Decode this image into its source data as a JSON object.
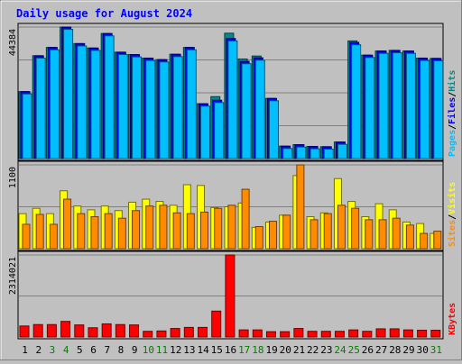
{
  "chart_data": {
    "type": "bar",
    "title": "Daily usage for August 2024",
    "categories": [
      "1",
      "2",
      "3",
      "4",
      "5",
      "6",
      "7",
      "8",
      "9",
      "10",
      "11",
      "12",
      "13",
      "14",
      "15",
      "16",
      "17",
      "18",
      "19",
      "20",
      "21",
      "22",
      "23",
      "24",
      "25",
      "26",
      "27",
      "28",
      "29",
      "30",
      "31"
    ],
    "weekend_days": [
      "3",
      "4",
      "10",
      "11",
      "17",
      "18",
      "24",
      "25",
      "31"
    ],
    "panels": [
      {
        "id": "hits-files-pages",
        "ymax_label": "44384",
        "ymax": 44384,
        "right_labels": [
          {
            "text": "Pages",
            "color": "#00bfff"
          },
          {
            "text": "/",
            "color": "#000000"
          },
          {
            "text": "Files",
            "color": "#0000ff"
          },
          {
            "text": "/",
            "color": "#000000"
          },
          {
            "text": "Hits",
            "color": "#008b8b"
          }
        ],
        "series": [
          {
            "name": "Hits",
            "color": "#008b8b",
            "values": [
              22600,
              34700,
              37500,
              44384,
              38800,
              37300,
              42200,
              35900,
              35100,
              33900,
              33400,
              35200,
              37500,
              18500,
              20900,
              42300,
              33600,
              34600,
              20300,
              4200,
              4700,
              4100,
              4000,
              5600,
              39700,
              34900,
              36300,
              36500,
              36300,
              33900,
              33800
            ]
          },
          {
            "name": "Files",
            "color": "#0000ff",
            "values": [
              22600,
              34700,
              37500,
              44384,
              38800,
              37300,
              42200,
              35900,
              35100,
              33900,
              33400,
              35200,
              37500,
              18500,
              19700,
              40500,
              32800,
              34000,
              20300,
              4200,
              4700,
              4100,
              4000,
              5600,
              39200,
              34900,
              36300,
              36500,
              36300,
              33900,
              33800
            ]
          },
          {
            "name": "Pages",
            "color": "#00bfff",
            "values": [
              21800,
              33900,
              36700,
              43600,
              38000,
              36500,
              41400,
              35100,
              34300,
              33100,
              32600,
              34400,
              36700,
              17700,
              18900,
              39700,
              32000,
              33200,
              19500,
              3400,
              3900,
              3300,
              3200,
              4800,
              38400,
              34100,
              35500,
              35700,
              35500,
              33100,
              33000
            ]
          }
        ]
      },
      {
        "id": "visits-sites",
        "ymax_label": "1100",
        "ymax": 1100,
        "right_labels": [
          {
            "text": "Sites",
            "color": "#ff8c00"
          },
          {
            "text": "/",
            "color": "#000000"
          },
          {
            "text": "Visits",
            "color": "#ffff00"
          }
        ],
        "series": [
          {
            "name": "Visits",
            "color": "#ffff00",
            "values": [
              460,
              530,
              460,
              760,
              560,
              510,
              560,
              500,
              610,
              650,
              620,
              570,
              840,
              830,
              540,
              550,
              600,
              280,
              350,
              440,
              960,
              420,
              470,
              920,
              620,
              420,
              590,
              510,
              350,
              330,
              200
            ]
          },
          {
            "name": "Sites",
            "color": "#ff8c00",
            "values": [
              320,
              450,
              320,
              650,
              460,
              420,
              460,
              400,
              500,
              560,
              570,
              470,
              460,
              480,
              530,
              570,
              780,
              290,
              360,
              440,
              1100,
              380,
              460,
              570,
              530,
              380,
              380,
              400,
              310,
              200,
              230
            ]
          }
        ]
      },
      {
        "id": "kbytes",
        "ymax_label": "2314021",
        "ymax": 2314021,
        "right_labels": [
          {
            "text": "KBytes",
            "color": "#ff0000"
          }
        ],
        "series": [
          {
            "name": "KBytes",
            "color": "#ff0000",
            "values": [
              310000,
              350000,
              350000,
              440000,
              340000,
              260000,
              370000,
              350000,
              340000,
              160000,
              170000,
              240000,
              270000,
              270000,
              730000,
              2314021,
              200000,
              200000,
              150000,
              150000,
              240000,
              160000,
              160000,
              160000,
              200000,
              160000,
              230000,
              230000,
              200000,
              190000,
              190000
            ]
          }
        ]
      }
    ],
    "legend_position": "right-vertical",
    "grid": true
  }
}
